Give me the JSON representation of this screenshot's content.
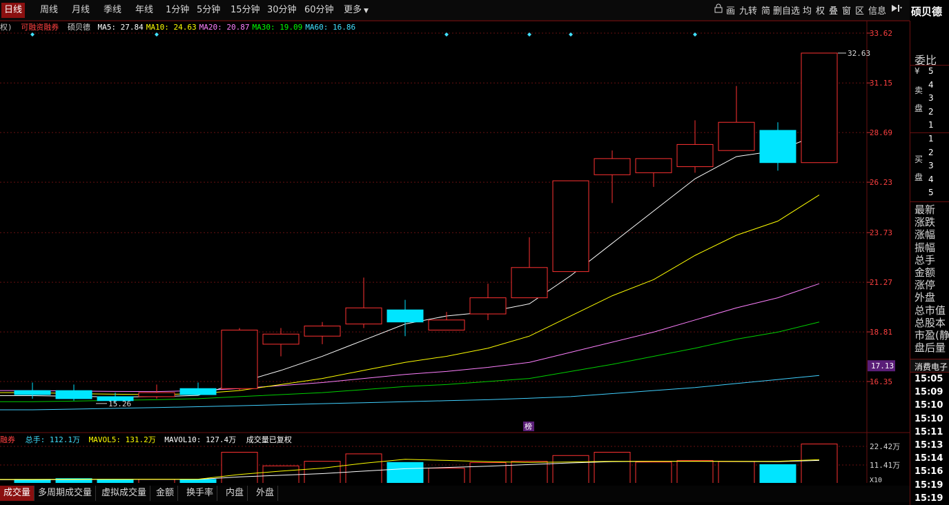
{
  "period_tabs": [
    "日线",
    "周线",
    "月线",
    "季线",
    "年线",
    "1分钟",
    "5分钟",
    "15分钟",
    "30分钟",
    "60分钟",
    "更多"
  ],
  "toolbar": {
    "icons": [
      "lock-icon",
      "draw-icon"
    ],
    "items": [
      "画",
      "九转",
      "简",
      "删自选",
      "均",
      "权",
      "叠",
      "窗",
      "区",
      "信息"
    ]
  },
  "stock": {
    "name": "硕贝德",
    "sector": "消费电子"
  },
  "legend": {
    "prefix": "权)",
    "margin_tag": "可融资融券",
    "name": "硕贝德",
    "ma": [
      {
        "label": "MA5:",
        "value": "27.84",
        "color": "#ffffff"
      },
      {
        "label": "MA10:",
        "value": "24.63",
        "color": "#ffff00"
      },
      {
        "label": "MA20:",
        "value": "20.87",
        "color": "#ff80ff"
      },
      {
        "label": "MA30:",
        "value": "19.09",
        "color": "#00ff00"
      },
      {
        "label": "MA60:",
        "value": "16.86",
        "color": "#40e0ff"
      }
    ]
  },
  "volume_legend": {
    "prefix": "融券",
    "total_label": "总手:",
    "total": "112.1万",
    "mavol5_label": "MAVOL5:",
    "mavol5": "131.2万",
    "mavol10_label": "MAVOL10:",
    "mavol10": "127.4万",
    "note": "成交量已复权"
  },
  "price_axis": [
    "33.62",
    "31.15",
    "28.69",
    "26.23",
    "23.73",
    "21.27",
    "18.81",
    "16.35"
  ],
  "price_marker": "17.13",
  "volume_axis": [
    "22.42万",
    "11.41万",
    "X10"
  ],
  "annotations": {
    "high": "32.63",
    "low": "15.26",
    "bang": "榜"
  },
  "bottom_tabs": [
    "成交量",
    "多周期成交量",
    "虚拟成交量",
    "金额",
    "换手率",
    "内盘",
    "外盘"
  ],
  "side": {
    "wei_bi": "委比",
    "yen": "¥",
    "sell_label": [
      "卖",
      "盘"
    ],
    "buy_label": [
      "买",
      "盘"
    ],
    "sell_levels": [
      "5",
      "4",
      "3",
      "2",
      "1"
    ],
    "buy_levels": [
      "1",
      "2",
      "3",
      "4",
      "5"
    ],
    "stats": [
      "最新",
      "涨跌",
      "涨幅",
      "振幅",
      "总手",
      "金额",
      "涨停",
      "外盘",
      "总市值",
      "总股本",
      "市盈(静",
      "盘后量"
    ],
    "times": [
      "15:05",
      "15:09",
      "15:10",
      "15:10",
      "15:11",
      "15:13",
      "15:14",
      "15:16",
      "15:19",
      "15:19"
    ]
  },
  "chart_data": {
    "type": "candlestick",
    "price_range": [
      14.0,
      35.0
    ],
    "up_color": "#ff3232",
    "down_color": "#00e5ff",
    "candles": [
      {
        "o": 15.9,
        "h": 16.3,
        "l": 15.5,
        "c": 15.7,
        "v": 0.3
      },
      {
        "o": 15.9,
        "h": 16.2,
        "l": 15.4,
        "c": 15.5,
        "v": 0.35
      },
      {
        "o": 15.6,
        "h": 15.8,
        "l": 15.26,
        "c": 15.4,
        "v": 0.3
      },
      {
        "o": 15.6,
        "h": 16.2,
        "l": 15.5,
        "c": 15.8,
        "v": 0.3
      },
      {
        "o": 16.0,
        "h": 16.3,
        "l": 15.7,
        "c": 15.7,
        "v": 0.3
      },
      {
        "o": 16.0,
        "h": 19.0,
        "l": 15.9,
        "c": 18.9,
        "v": 1.95
      },
      {
        "o": 18.2,
        "h": 19.0,
        "l": 17.6,
        "c": 18.7,
        "v": 1.12
      },
      {
        "o": 18.6,
        "h": 19.3,
        "l": 18.2,
        "c": 19.1,
        "v": 1.4
      },
      {
        "o": 19.2,
        "h": 21.5,
        "l": 19.0,
        "c": 20.0,
        "v": 1.85
      },
      {
        "o": 19.9,
        "h": 20.4,
        "l": 18.6,
        "c": 19.3,
        "v": 1.33
      },
      {
        "o": 18.9,
        "h": 19.8,
        "l": 18.9,
        "c": 19.4,
        "v": 0.98
      },
      {
        "o": 19.7,
        "h": 21.2,
        "l": 19.4,
        "c": 20.5,
        "v": 1.32
      },
      {
        "o": 20.5,
        "h": 23.5,
        "l": 20.5,
        "c": 22.0,
        "v": 1.4
      },
      {
        "o": 21.8,
        "h": 26.3,
        "l": 21.8,
        "c": 26.3,
        "v": 1.75
      },
      {
        "o": 26.6,
        "h": 27.8,
        "l": 25.2,
        "c": 27.4,
        "v": 1.95
      },
      {
        "o": 26.7,
        "h": 27.4,
        "l": 26.0,
        "c": 27.4,
        "v": 1.35
      },
      {
        "o": 27.0,
        "h": 29.3,
        "l": 26.7,
        "c": 28.1,
        "v": 1.45
      },
      {
        "o": 27.8,
        "h": 31.0,
        "l": 27.8,
        "c": 29.2,
        "v": 1.38
      },
      {
        "o": 28.8,
        "h": 29.2,
        "l": 26.8,
        "c": 27.2,
        "v": 1.2
      },
      {
        "o": 27.2,
        "h": 32.63,
        "l": 27.2,
        "c": 32.63,
        "v": 2.45
      }
    ],
    "ma5": [
      15.65,
      15.62,
      15.58,
      15.6,
      15.66,
      16.3,
      16.9,
      17.6,
      18.4,
      19.2,
      19.6,
      19.8,
      20.2,
      21.6,
      23.2,
      24.8,
      26.4,
      27.5,
      27.8,
      28.6
    ],
    "ma10": [
      15.8,
      15.75,
      15.72,
      15.7,
      15.75,
      15.9,
      16.2,
      16.5,
      16.9,
      17.3,
      17.6,
      18.0,
      18.6,
      19.6,
      20.6,
      21.4,
      22.6,
      23.6,
      24.3,
      25.6
    ],
    "ma20": [
      15.9,
      15.88,
      15.86,
      15.85,
      15.9,
      16.0,
      16.15,
      16.3,
      16.5,
      16.7,
      16.85,
      17.05,
      17.3,
      17.8,
      18.3,
      18.8,
      19.4,
      20.0,
      20.5,
      21.2
    ],
    "ma30": [
      15.35,
      15.38,
      15.42,
      15.45,
      15.5,
      15.6,
      15.7,
      15.8,
      15.95,
      16.1,
      16.2,
      16.35,
      16.5,
      16.85,
      17.2,
      17.6,
      18.0,
      18.45,
      18.8,
      19.3
    ],
    "ma60": [
      14.95,
      14.98,
      15.02,
      15.06,
      15.1,
      15.15,
      15.2,
      15.25,
      15.3,
      15.35,
      15.4,
      15.45,
      15.52,
      15.6,
      15.75,
      15.9,
      16.05,
      16.25,
      16.45,
      16.65
    ],
    "mavol5": [
      0.3,
      0.31,
      0.31,
      0.31,
      0.31,
      0.6,
      0.8,
      0.98,
      1.28,
      1.52,
      1.45,
      1.38,
      1.33,
      1.36,
      1.4,
      1.4,
      1.4,
      1.4,
      1.4,
      1.5
    ],
    "mavol10": [
      0.28,
      0.29,
      0.3,
      0.3,
      0.3,
      0.45,
      0.55,
      0.65,
      0.8,
      0.95,
      1.02,
      1.1,
      1.2,
      1.3,
      1.38,
      1.4,
      1.4,
      1.39,
      1.38,
      1.45
    ],
    "volume_range": [
      0,
      2.6
    ]
  }
}
